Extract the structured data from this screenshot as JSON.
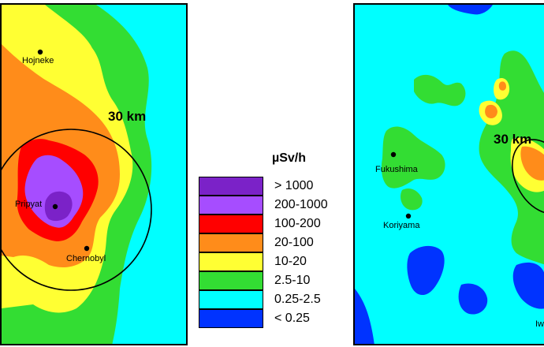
{
  "maps": {
    "chernobyl": {
      "radius_label": "30 km",
      "cities": [
        {
          "name": "Hojneke"
        },
        {
          "name": "Pripyat"
        },
        {
          "name": "Chernobyl"
        }
      ]
    },
    "fukushima": {
      "radius_label": "30 km",
      "cities": [
        {
          "name": "Fukushima"
        },
        {
          "name": "Koriyama"
        },
        {
          "name": "Iw"
        }
      ]
    }
  },
  "legend": {
    "unit": "µSv/h",
    "items": [
      {
        "label": "> 1000",
        "color": "#7b22c8"
      },
      {
        "label": "200-1000",
        "color": "#a64dff"
      },
      {
        "label": "100-200",
        "color": "#ff0000"
      },
      {
        "label": "20-100",
        "color": "#ff8c1a"
      },
      {
        "label": "10-20",
        "color": "#ffff33"
      },
      {
        "label": "2.5-10",
        "color": "#33dd33"
      },
      {
        "label": "0.25-2.5",
        "color": "#00ffff"
      },
      {
        "label": "< 0.25",
        "color": "#0033ff"
      }
    ]
  }
}
